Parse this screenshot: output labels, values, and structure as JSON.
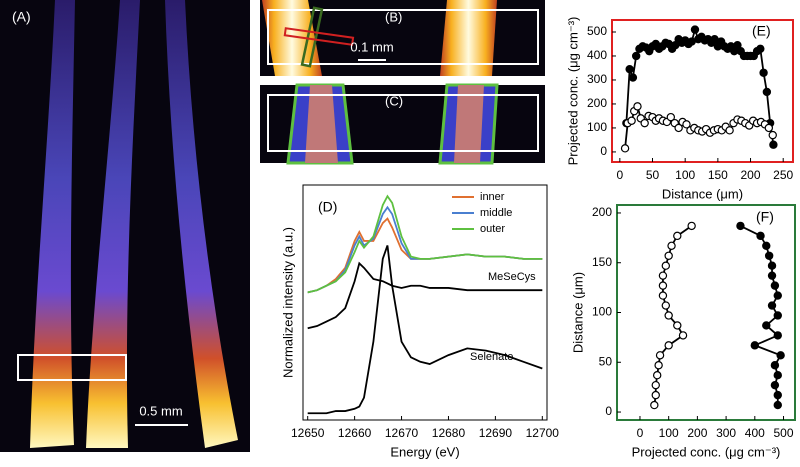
{
  "images": [
    {
      "label": "(A)",
      "scale_bar": "0.5 mm"
    },
    {
      "label": "(B)",
      "scale_bar": "0.1 mm"
    },
    {
      "label": "(C)"
    }
  ],
  "chart_data": [
    {
      "type": "line",
      "panel_label": "(D)",
      "x_label": "Energy (eV)",
      "y_label": "Normalized intensity (a.u.)",
      "frame_color": "#000000",
      "legend": "upper right",
      "xlim": [
        12649,
        12701
      ],
      "ylim": [
        0,
        1.05
      ],
      "xticks": [
        12650,
        12660,
        12670,
        12680,
        12690,
        12700
      ],
      "x": [
        12650,
        12652,
        12654,
        12656,
        12658,
        12660,
        12661,
        12662,
        12664,
        12666,
        12667,
        12668,
        12670,
        12672,
        12674,
        12676,
        12680,
        12684,
        12688,
        12692,
        12696,
        12700
      ],
      "series": [
        {
          "name": "inner",
          "color": "#e07030",
          "values": [
            0.57,
            0.58,
            0.6,
            0.63,
            0.68,
            0.8,
            0.84,
            0.8,
            0.8,
            0.88,
            0.9,
            0.86,
            0.76,
            0.72,
            0.72,
            0.72,
            0.73,
            0.74,
            0.73,
            0.73,
            0.72,
            0.72
          ]
        },
        {
          "name": "middle",
          "color": "#4a7fd0",
          "values": [
            0.57,
            0.58,
            0.6,
            0.62,
            0.67,
            0.78,
            0.82,
            0.78,
            0.81,
            0.92,
            0.95,
            0.92,
            0.79,
            0.72,
            0.72,
            0.72,
            0.73,
            0.74,
            0.73,
            0.73,
            0.72,
            0.72
          ]
        },
        {
          "name": "outer",
          "color": "#5ec040",
          "values": [
            0.57,
            0.58,
            0.6,
            0.62,
            0.66,
            0.75,
            0.8,
            0.77,
            0.82,
            0.96,
            1.0,
            0.97,
            0.82,
            0.73,
            0.72,
            0.72,
            0.73,
            0.74,
            0.73,
            0.73,
            0.72,
            0.72
          ]
        },
        {
          "name": "MeSeCys",
          "color": "#000000",
          "label": "inline",
          "values": [
            0.41,
            0.42,
            0.44,
            0.46,
            0.5,
            0.62,
            0.7,
            0.68,
            0.63,
            0.62,
            0.61,
            0.6,
            0.59,
            0.6,
            0.6,
            0.59,
            0.59,
            0.58,
            0.58,
            0.58,
            0.58,
            0.58
          ]
        },
        {
          "name": "Selenate",
          "color": "#000000",
          "label": "inline",
          "values": [
            0.03,
            0.03,
            0.03,
            0.04,
            0.04,
            0.05,
            0.06,
            0.1,
            0.35,
            0.72,
            0.78,
            0.6,
            0.35,
            0.28,
            0.26,
            0.25,
            0.29,
            0.32,
            0.31,
            0.29,
            0.26,
            0.23
          ]
        }
      ]
    },
    {
      "type": "line",
      "panel_label": "(E)",
      "x_label": "Distance (μm)",
      "y_label": "Projected conc. (μg cm⁻³)",
      "frame_color": "#e02020",
      "xlim": [
        -12,
        265
      ],
      "ylim": [
        -42,
        550
      ],
      "xticks": [
        0,
        50,
        100,
        150,
        200,
        250
      ],
      "yticks": [
        0,
        100,
        200,
        300,
        400,
        500
      ],
      "series": [
        {
          "marker": "filled",
          "color": "#000000",
          "x": [
            10,
            15,
            20,
            25,
            30,
            35,
            40,
            45,
            50,
            55,
            60,
            65,
            70,
            75,
            80,
            85,
            90,
            95,
            100,
            105,
            110,
            115,
            120,
            125,
            130,
            135,
            140,
            145,
            150,
            155,
            160,
            165,
            170,
            175,
            180,
            185,
            190,
            195,
            200,
            205,
            210,
            215,
            220,
            225,
            230,
            235
          ],
          "y": [
            120,
            345,
            310,
            400,
            430,
            440,
            435,
            420,
            440,
            450,
            430,
            440,
            455,
            450,
            430,
            445,
            470,
            455,
            465,
            450,
            460,
            510,
            470,
            480,
            465,
            470,
            455,
            470,
            440,
            460,
            440,
            430,
            440,
            420,
            445,
            420,
            400,
            400,
            400,
            400,
            420,
            430,
            330,
            250,
            120,
            30
          ]
        },
        {
          "marker": "open",
          "color": "#000000",
          "x": [
            8,
            12,
            18,
            22,
            27,
            32,
            38,
            44,
            50,
            55,
            60,
            66,
            72,
            78,
            84,
            90,
            96,
            102,
            108,
            114,
            120,
            126,
            132,
            138,
            144,
            150,
            156,
            162,
            168,
            174,
            180,
            186,
            192,
            198,
            204,
            210,
            216,
            222,
            228,
            234
          ],
          "y": [
            15,
            120,
            130,
            170,
            190,
            140,
            120,
            150,
            145,
            130,
            140,
            130,
            125,
            145,
            120,
            100,
            125,
            115,
            90,
            100,
            90,
            85,
            95,
            80,
            90,
            95,
            90,
            105,
            90,
            120,
            135,
            130,
            120,
            110,
            130,
            120,
            125,
            115,
            100,
            70
          ]
        }
      ]
    },
    {
      "type": "line",
      "panel_label": "(F)",
      "x_label": "Projected conc. (μg cm⁻³)",
      "y_label": "Distance (μm)",
      "frame_color": "#2a7a3a",
      "xlim": [
        -80,
        540
      ],
      "ylim": [
        -8,
        208
      ],
      "xticks": [
        0,
        100,
        200,
        300,
        400,
        500
      ],
      "yticks": [
        0,
        50,
        100,
        150,
        200
      ],
      "series": [
        {
          "marker": "open",
          "color": "#000000",
          "x": [
            50,
            55,
            55,
            60,
            65,
            70,
            100,
            150,
            130,
            100,
            90,
            80,
            80,
            80,
            90,
            100,
            110,
            130,
            180
          ],
          "y": [
            7,
            17,
            27,
            37,
            47,
            57,
            67,
            77,
            87,
            97,
            107,
            117,
            127,
            137,
            147,
            157,
            167,
            177,
            187
          ]
        },
        {
          "marker": "filled",
          "color": "#000000",
          "x": [
            480,
            480,
            470,
            480,
            470,
            490,
            400,
            480,
            440,
            480,
            460,
            480,
            470,
            460,
            460,
            450,
            440,
            420,
            350
          ],
          "y": [
            7,
            17,
            27,
            37,
            47,
            57,
            67,
            77,
            87,
            97,
            107,
            117,
            127,
            137,
            147,
            157,
            167,
            177,
            187
          ]
        }
      ]
    }
  ]
}
